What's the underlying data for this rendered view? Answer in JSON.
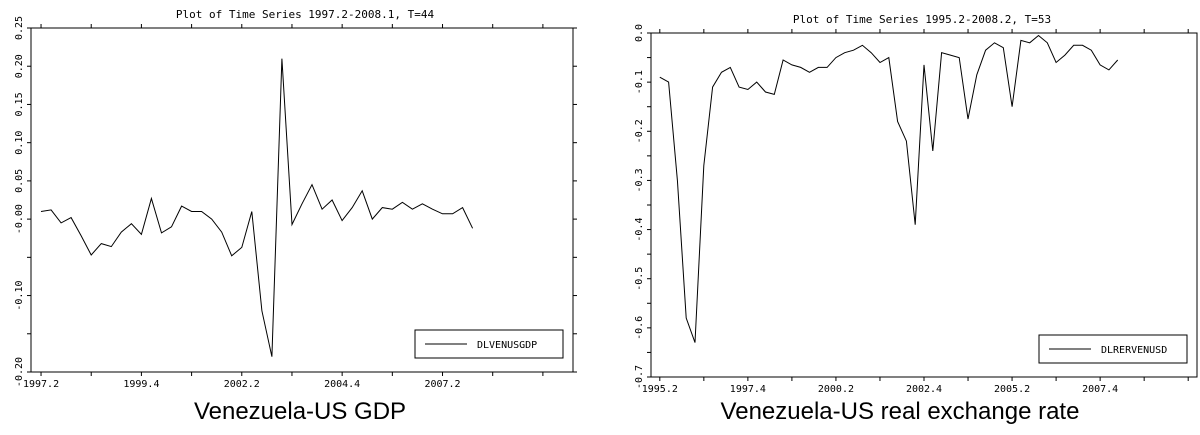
{
  "chart_data": [
    {
      "type": "line",
      "title": "Plot of Time Series 1997.2-2008.1, T=44",
      "caption": "Venezuela-US GDP",
      "x_tick_labels": [
        "1997.2",
        "1999.4",
        "2002.2",
        "2004.4",
        "2007.2"
      ],
      "y_tick_labels": [
        "-0.20",
        "-0.10",
        "-0.00",
        "0.05",
        "0.10",
        "0.15",
        "0.20",
        "0.25"
      ],
      "y_ticks": [
        -0.2,
        -0.15,
        -0.1,
        -0.05,
        0.0,
        0.05,
        0.1,
        0.15,
        0.2,
        0.25
      ],
      "ylim": [
        -0.2,
        0.25
      ],
      "xlim": [
        1997.0,
        2010.5
      ],
      "x_ticks": [
        1997.25,
        1999.75,
        2002.25,
        2004.75,
        2007.25
      ],
      "legend": "bottom-right",
      "series": [
        {
          "name": "DLVENUSGDP",
          "x": [
            1997.25,
            1997.5,
            1997.75,
            1998.0,
            1998.25,
            1998.5,
            1998.75,
            1999.0,
            1999.25,
            1999.5,
            1999.75,
            2000.0,
            2000.25,
            2000.5,
            2000.75,
            2001.0,
            2001.25,
            2001.5,
            2001.75,
            2002.0,
            2002.25,
            2002.5,
            2002.75,
            2003.0,
            2003.25,
            2003.5,
            2003.75,
            2004.0,
            2004.25,
            2004.5,
            2004.75,
            2005.0,
            2005.25,
            2005.5,
            2005.75,
            2006.0,
            2006.25,
            2006.5,
            2006.75,
            2007.0,
            2007.25,
            2007.5,
            2007.75,
            2008.0
          ],
          "values": [
            0.01,
            0.012,
            -0.005,
            0.002,
            -0.022,
            -0.047,
            -0.032,
            -0.036,
            -0.017,
            -0.006,
            -0.02,
            0.027,
            -0.018,
            -0.01,
            0.017,
            0.01,
            0.01,
            0.0,
            -0.017,
            -0.048,
            -0.037,
            0.01,
            -0.12,
            -0.18,
            0.21,
            -0.007,
            0.02,
            0.045,
            0.013,
            0.025,
            -0.002,
            0.015,
            0.037,
            0.0,
            0.015,
            0.013,
            0.022,
            0.013,
            0.02,
            0.013,
            0.007,
            0.007,
            0.015,
            -0.012
          ]
        }
      ]
    },
    {
      "type": "line",
      "title": "Plot of Time Series 1995.2-2008.2, T=53",
      "caption": "Venezuela-US real exchange rate",
      "x_tick_labels": [
        "1995.2",
        "1997.4",
        "2000.2",
        "2002.4",
        "2005.2",
        "2007.4"
      ],
      "y_tick_labels": [
        "-0.7",
        "-0.6",
        "-0.5",
        "-0.4",
        "-0.3",
        "-0.2",
        "-0.1",
        "0.0"
      ],
      "y_ticks": [
        -0.7,
        -0.65,
        -0.6,
        -0.55,
        -0.5,
        -0.45,
        -0.4,
        -0.35,
        -0.3,
        -0.25,
        -0.2,
        -0.15,
        -0.1,
        -0.05,
        0.0
      ],
      "ylim": [
        -0.7,
        0.0
      ],
      "xlim": [
        1995.0,
        2010.5
      ],
      "x_ticks": [
        1995.25,
        1997.75,
        2000.25,
        2002.75,
        2005.25,
        2007.75
      ],
      "legend": "bottom-right",
      "series": [
        {
          "name": "DLRERVENUSD",
          "x": [
            1995.25,
            1995.5,
            1995.75,
            1996.0,
            1996.25,
            1996.5,
            1996.75,
            1997.0,
            1997.25,
            1997.5,
            1997.75,
            1998.0,
            1998.25,
            1998.5,
            1998.75,
            1999.0,
            1999.25,
            1999.5,
            1999.75,
            2000.0,
            2000.25,
            2000.5,
            2000.75,
            2001.0,
            2001.25,
            2001.5,
            2001.75,
            2002.0,
            2002.25,
            2002.5,
            2002.75,
            2003.0,
            2003.25,
            2003.5,
            2003.75,
            2004.0,
            2004.25,
            2004.5,
            2004.75,
            2005.0,
            2005.25,
            2005.5,
            2005.75,
            2006.0,
            2006.25,
            2006.5,
            2006.75,
            2007.0,
            2007.25,
            2007.5,
            2007.75,
            2008.0,
            2008.25
          ],
          "values": [
            -0.09,
            -0.1,
            -0.3,
            -0.58,
            -0.63,
            -0.27,
            -0.11,
            -0.08,
            -0.07,
            -0.11,
            -0.115,
            -0.1,
            -0.12,
            -0.125,
            -0.055,
            -0.065,
            -0.07,
            -0.08,
            -0.07,
            -0.07,
            -0.05,
            -0.04,
            -0.035,
            -0.025,
            -0.04,
            -0.06,
            -0.05,
            -0.18,
            -0.22,
            -0.39,
            -0.065,
            -0.24,
            -0.04,
            -0.045,
            -0.05,
            -0.175,
            -0.085,
            -0.035,
            -0.02,
            -0.03,
            -0.15,
            -0.015,
            -0.02,
            -0.005,
            -0.02,
            -0.06,
            -0.045,
            -0.025,
            -0.025,
            -0.035,
            -0.065,
            -0.075,
            -0.055
          ]
        }
      ]
    }
  ]
}
